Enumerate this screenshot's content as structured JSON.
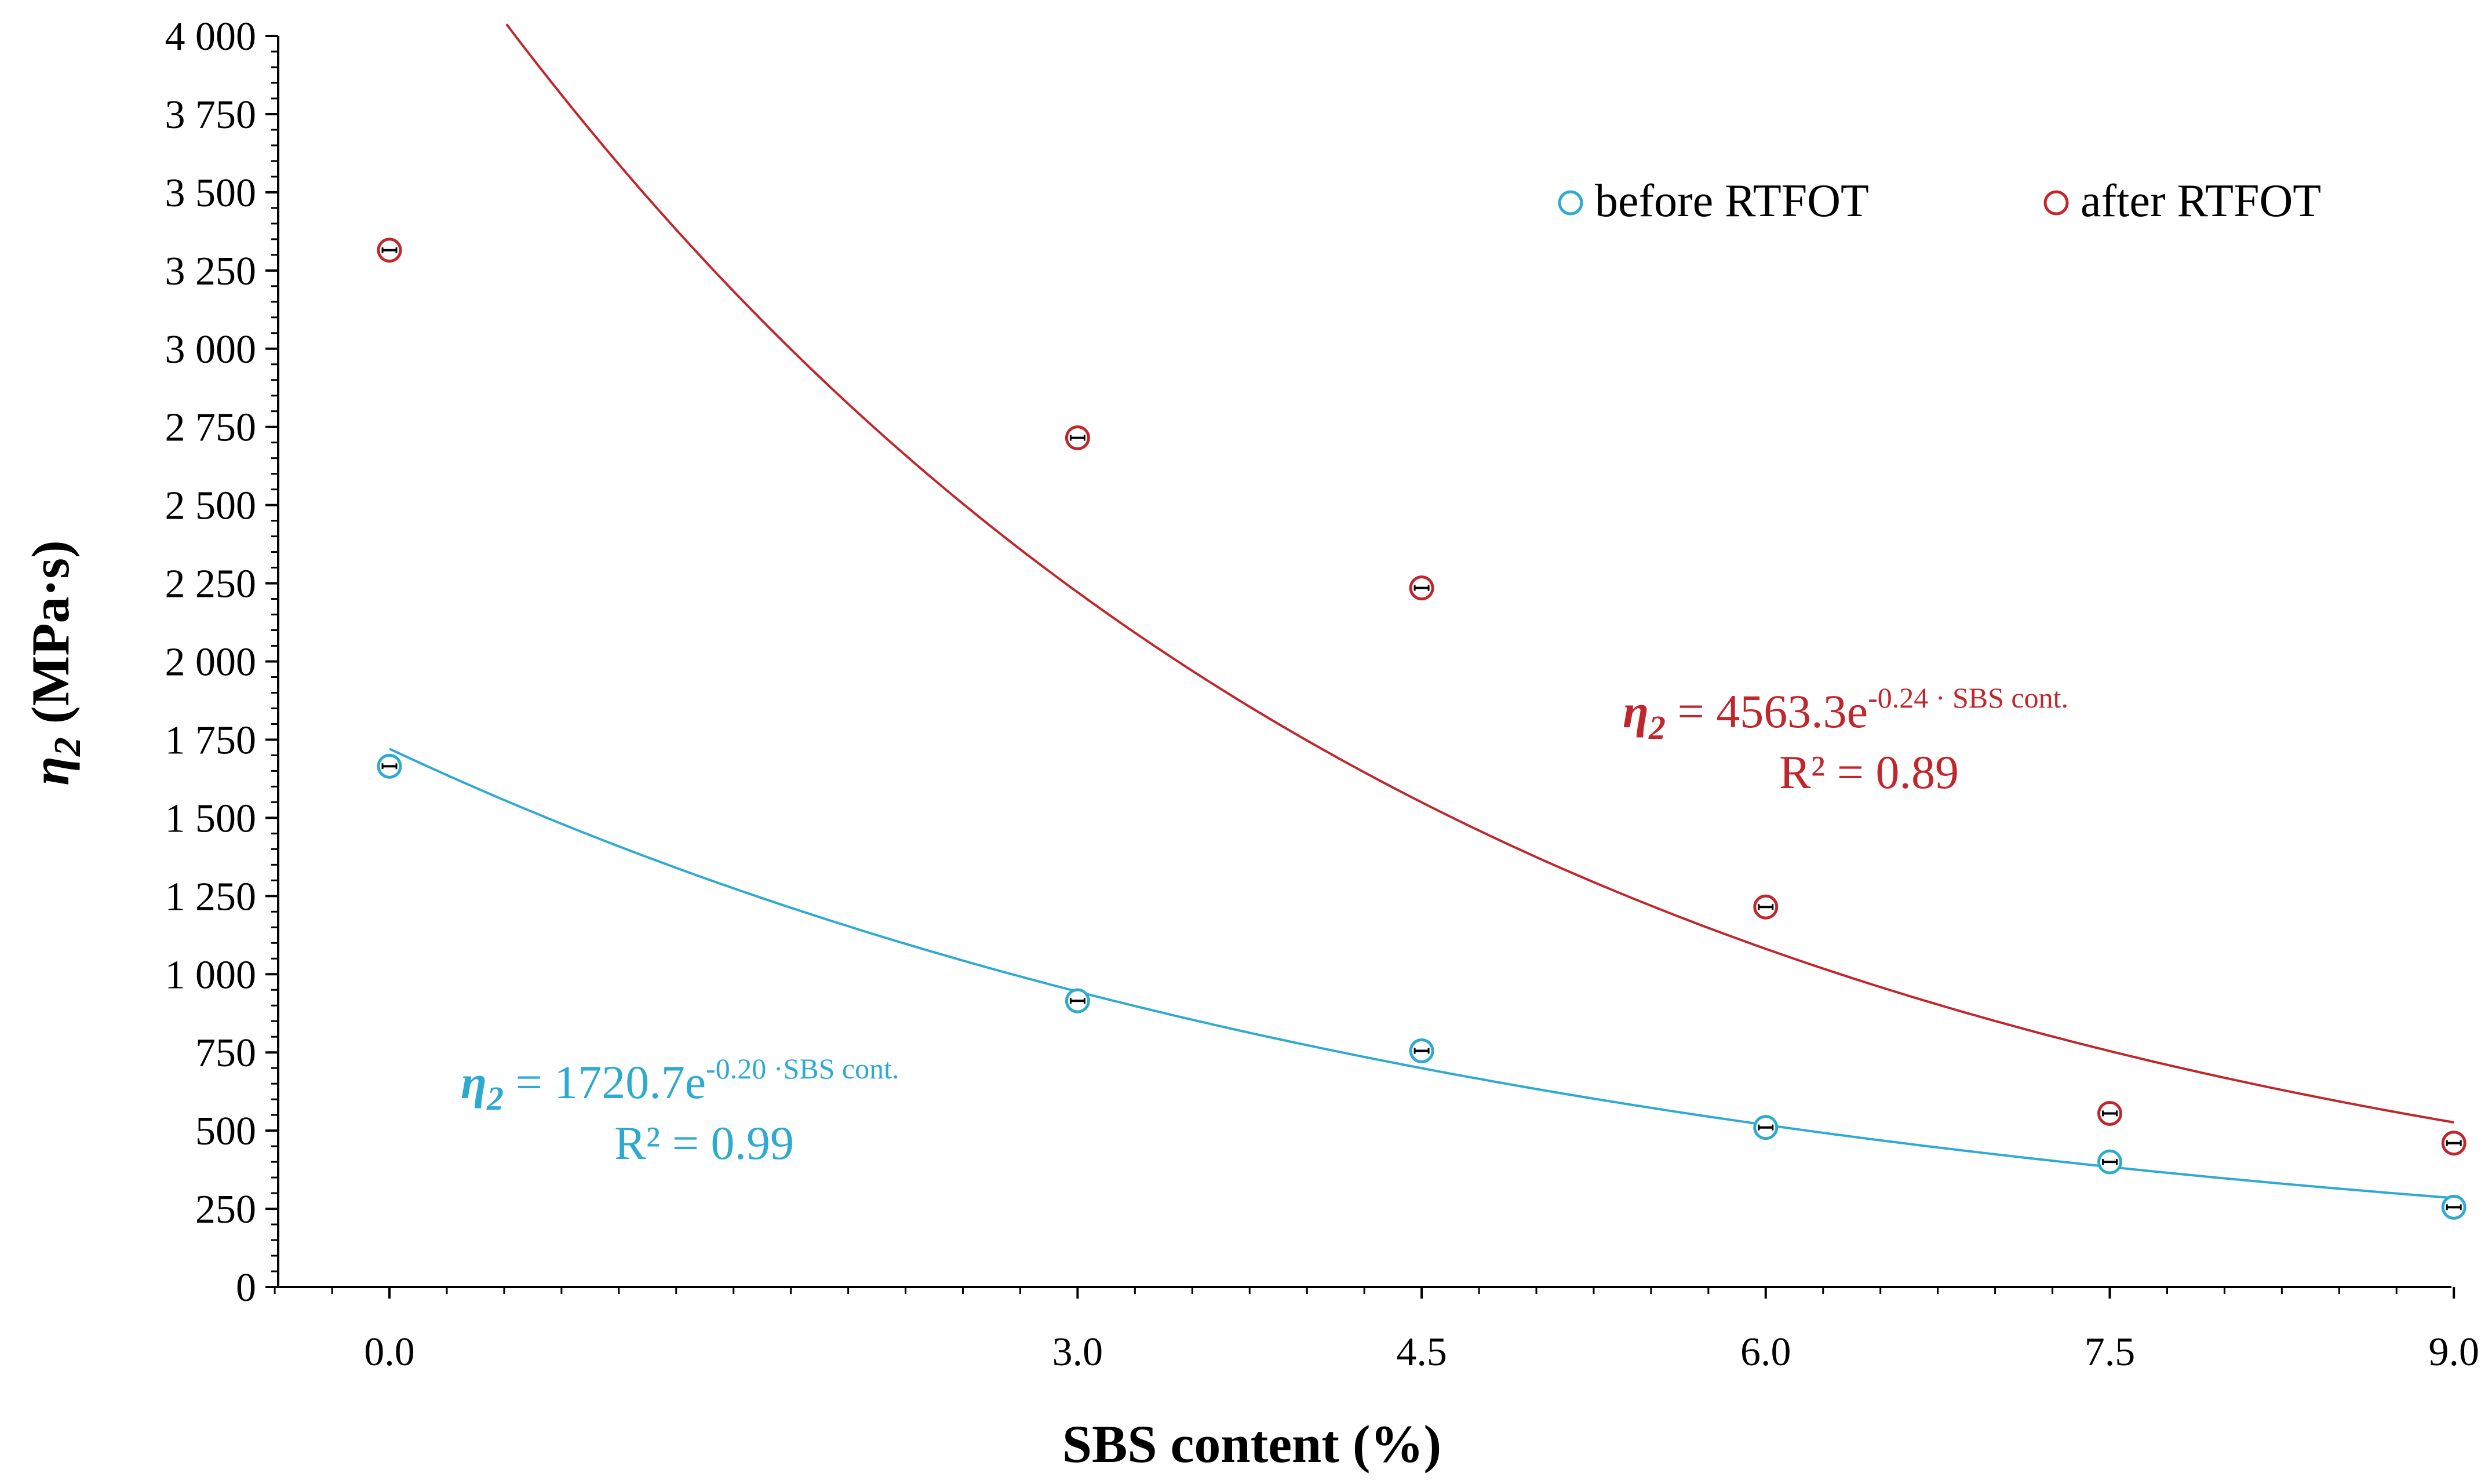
{
  "chart_data": {
    "type": "scatter",
    "title": "",
    "xlabel": "SBS content (%)",
    "ylabel": {
      "symbol": "η",
      "subscript": "2",
      "unit": " (MPa·s)"
    },
    "xlim": [
      -0.5,
      9.0
    ],
    "ylim": [
      0,
      4000
    ],
    "x_tick_values": [
      0.0,
      3.0,
      4.5,
      6.0,
      7.5,
      9.0
    ],
    "x_tick_labels": [
      "0.0",
      "3.0",
      "4.5",
      "6.0",
      "7.5",
      "9.0"
    ],
    "y_tick_values": [
      0,
      250,
      500,
      750,
      1000,
      1250,
      1500,
      1750,
      2000,
      2250,
      2500,
      2750,
      3000,
      3250,
      3500,
      3750,
      4000
    ],
    "y_tick_labels": [
      "0",
      "250",
      "500",
      "750",
      "1 000",
      "1 250",
      "1 500",
      "1 750",
      "2 000",
      "2 250",
      "2 500",
      "2 750",
      "3 000",
      "3 250",
      "3 500",
      "3 750",
      "4 000"
    ],
    "grid": false,
    "legend_position": "top-right",
    "series": [
      {
        "name": "before RTFOT",
        "color": "#2eaad1",
        "x": [
          0.0,
          3.0,
          4.5,
          6.0,
          7.5,
          9.0
        ],
        "y": [
          1665,
          915,
          755,
          510,
          400,
          255
        ],
        "fit": {
          "a": 1720.7,
          "b": -0.2,
          "x_start": 0.0,
          "x_end": 9.0
        },
        "equation": {
          "symbol": "η",
          "subscript": "2",
          "text": " = 1720.7e",
          "exponent": "-0.20 ·SBS cont.",
          "r2": "R² = 0.99"
        }
      },
      {
        "name": "after RTFOT",
        "color": "#c0262c",
        "x": [
          0.0,
          3.0,
          4.5,
          6.0,
          7.5,
          9.0
        ],
        "y": [
          3315,
          2715,
          2235,
          1215,
          555,
          460
        ],
        "fit": {
          "a": 4563.3,
          "b": -0.24,
          "x_start": 0.51,
          "x_end": 9.0
        },
        "equation": {
          "symbol": "η",
          "subscript": "2",
          "text": " = 4563.3e",
          "exponent": "-0.24 · SBS cont.",
          "r2": "R² = 0.89"
        }
      }
    ]
  }
}
